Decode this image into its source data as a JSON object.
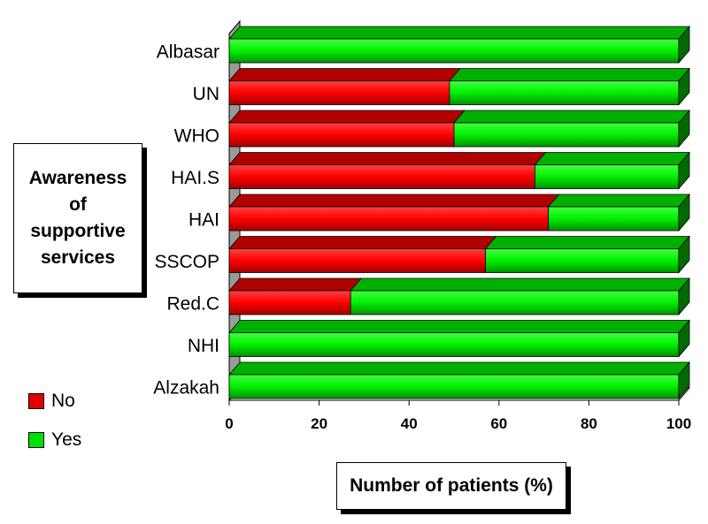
{
  "chart_data": {
    "type": "bar",
    "orientation": "horizontal",
    "stacked": true,
    "three_d": true,
    "categories": [
      "Albasar",
      "UN",
      "WHO",
      "HAI.S",
      "HAI",
      "SSCOP",
      "Red.C",
      "NHI",
      "Alzakah"
    ],
    "series": [
      {
        "name": "No",
        "values": [
          0,
          49,
          50,
          68,
          71,
          57,
          27,
          0,
          0
        ],
        "color": "#e00000"
      },
      {
        "name": "Yes",
        "values": [
          100,
          51,
          50,
          32,
          29,
          43,
          73,
          100,
          100
        ],
        "color": "#00e000"
      }
    ],
    "xlabel": "Number of patients (%)",
    "ylabel": "Awareness\nof\nsupportive\nservices",
    "xlim": [
      0,
      100
    ],
    "xticks": [
      0,
      20,
      40,
      60,
      80,
      100
    ],
    "legend_position": "bottom-left",
    "grid": false
  }
}
